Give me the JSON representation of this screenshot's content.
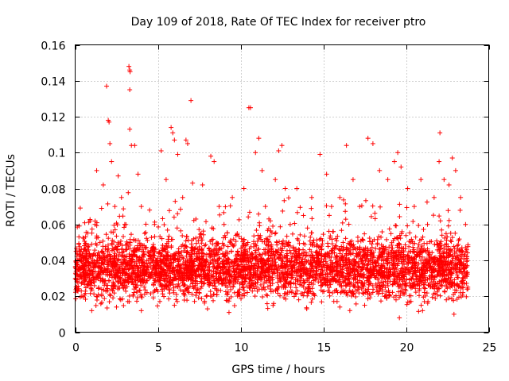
{
  "chart_data": {
    "type": "scatter",
    "title": "Day 109 of 2018, Rate Of TEC Index for receiver ptro",
    "xlabel": "GPS time / hours",
    "ylabel": "ROTI / TECUs",
    "xlim": [
      0,
      25
    ],
    "ylim": [
      0,
      0.16
    ],
    "xticks": [
      0,
      5,
      10,
      15,
      20,
      25
    ],
    "yticks": [
      0,
      0.02,
      0.04,
      0.06,
      0.08,
      0.1,
      0.12,
      0.14,
      0.16
    ],
    "xtick_labels": [
      "0",
      "5",
      "10",
      "15",
      "20",
      "25"
    ],
    "ytick_labels": [
      "0",
      "0.02",
      "0.04",
      "0.06",
      "0.08",
      "0.1",
      "0.12",
      "0.14",
      "0.16"
    ],
    "grid": true,
    "marker": "+",
    "color": "#ff0000",
    "x_data_range": [
      0,
      23.75
    ],
    "dense_band": [
      0.015,
      0.055
    ],
    "series": [
      {
        "name": "ROTI",
        "points": [
          [
            0.05,
            0.03
          ],
          [
            0.1,
            0.025
          ],
          [
            0.2,
            0.035
          ],
          [
            0.3,
            0.04
          ],
          [
            0.4,
            0.02
          ],
          [
            0.5,
            0.03
          ],
          [
            0.7,
            0.045
          ],
          [
            0.9,
            0.062
          ],
          [
            1.0,
            0.028
          ],
          [
            1.2,
            0.06
          ],
          [
            1.3,
            0.09
          ],
          [
            1.5,
            0.05
          ],
          [
            1.7,
            0.082
          ],
          [
            1.9,
            0.137
          ],
          [
            2.0,
            0.118
          ],
          [
            2.05,
            0.117
          ],
          [
            2.1,
            0.105
          ],
          [
            2.2,
            0.095
          ],
          [
            2.4,
            0.07
          ],
          [
            2.6,
            0.087
          ],
          [
            2.8,
            0.075
          ],
          [
            3.0,
            0.06
          ],
          [
            3.25,
            0.148
          ],
          [
            3.3,
            0.146
          ],
          [
            3.32,
            0.145
          ],
          [
            3.3,
            0.135
          ],
          [
            3.3,
            0.113
          ],
          [
            3.4,
            0.104
          ],
          [
            3.6,
            0.104
          ],
          [
            3.8,
            0.088
          ],
          [
            4.0,
            0.07
          ],
          [
            4.2,
            0.055
          ],
          [
            4.5,
            0.068
          ],
          [
            4.8,
            0.06
          ],
          [
            5.2,
            0.101
          ],
          [
            5.5,
            0.085
          ],
          [
            5.8,
            0.114
          ],
          [
            5.9,
            0.111
          ],
          [
            6.0,
            0.107
          ],
          [
            6.2,
            0.099
          ],
          [
            6.5,
            0.075
          ],
          [
            6.7,
            0.107
          ],
          [
            6.8,
            0.105
          ],
          [
            7.0,
            0.129
          ],
          [
            7.1,
            0.083
          ],
          [
            7.3,
            0.063
          ],
          [
            7.7,
            0.082
          ],
          [
            8.2,
            0.098
          ],
          [
            8.4,
            0.095
          ],
          [
            8.7,
            0.07
          ],
          [
            9.0,
            0.06
          ],
          [
            9.5,
            0.075
          ],
          [
            9.8,
            0.055
          ],
          [
            10.2,
            0.08
          ],
          [
            10.5,
            0.125
          ],
          [
            10.6,
            0.125
          ],
          [
            10.9,
            0.1
          ],
          [
            11.1,
            0.108
          ],
          [
            11.3,
            0.09
          ],
          [
            11.5,
            0.07
          ],
          [
            11.8,
            0.062
          ],
          [
            12.1,
            0.085
          ],
          [
            12.3,
            0.101
          ],
          [
            12.5,
            0.104
          ],
          [
            12.7,
            0.08
          ],
          [
            13.0,
            0.06
          ],
          [
            13.4,
            0.08
          ],
          [
            13.8,
            0.065
          ],
          [
            14.3,
            0.075
          ],
          [
            14.8,
            0.099
          ],
          [
            15.2,
            0.088
          ],
          [
            15.5,
            0.07
          ],
          [
            16.0,
            0.075
          ],
          [
            16.4,
            0.104
          ],
          [
            16.8,
            0.085
          ],
          [
            17.2,
            0.07
          ],
          [
            17.7,
            0.108
          ],
          [
            18.0,
            0.105
          ],
          [
            18.4,
            0.09
          ],
          [
            18.9,
            0.085
          ],
          [
            19.3,
            0.095
          ],
          [
            19.5,
            0.1
          ],
          [
            19.7,
            0.092
          ],
          [
            20.1,
            0.08
          ],
          [
            20.5,
            0.07
          ],
          [
            20.9,
            0.085
          ],
          [
            21.3,
            0.06
          ],
          [
            21.7,
            0.075
          ],
          [
            22.0,
            0.095
          ],
          [
            22.05,
            0.111
          ],
          [
            22.3,
            0.085
          ],
          [
            22.6,
            0.082
          ],
          [
            22.8,
            0.097
          ],
          [
            23.0,
            0.09
          ],
          [
            23.3,
            0.075
          ],
          [
            23.6,
            0.06
          ],
          [
            23.7,
            0.04
          ],
          [
            1.0,
            0.012
          ],
          [
            2.5,
            0.014
          ],
          [
            4.0,
            0.012
          ],
          [
            6.0,
            0.015
          ],
          [
            8.0,
            0.013
          ],
          [
            9.3,
            0.011
          ],
          [
            12.0,
            0.016
          ],
          [
            14.0,
            0.013
          ],
          [
            16.0,
            0.014
          ],
          [
            17.5,
            0.015
          ],
          [
            19.6,
            0.008
          ],
          [
            21.0,
            0.012
          ],
          [
            22.9,
            0.01
          ]
        ]
      }
    ]
  }
}
